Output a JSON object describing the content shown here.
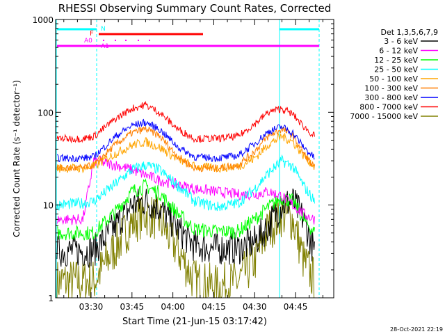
{
  "chart_data": {
    "type": "line",
    "title": "RHESSI Observing Summary Count Rates, Corrected",
    "xlabel": "Start Time (21-Jun-15 03:17:42)",
    "ylabel": "Corrected Count Rate (s⁻¹ detector⁻¹)",
    "yscale": "log",
    "ylim": [
      1,
      1000
    ],
    "y_ticks": [
      {
        "value": 1,
        "label": "1"
      },
      {
        "value": 10,
        "label": "10"
      },
      {
        "value": 100,
        "label": "100"
      },
      {
        "value": 1000,
        "label": "1000"
      }
    ],
    "xlim": [
      "03:17",
      "04:59"
    ],
    "x_ticks": [
      "03:30",
      "03:45",
      "04:00",
      "04:15",
      "04:30",
      "04:45"
    ],
    "grid": false,
    "legend_position": "right",
    "legend_title": "Det 1,3,5,6,7,9",
    "x": [
      "03:18",
      "03:27",
      "03:31",
      "03:39",
      "03:45",
      "03:50",
      "03:55",
      "04:02",
      "04:08",
      "04:16",
      "04:24",
      "04:30",
      "04:35",
      "04:40",
      "04:44",
      "04:48",
      "04:52"
    ],
    "series": [
      {
        "name": "3 - 6 keV",
        "color": "#000000",
        "values": [
          3.2,
          3.2,
          3.2,
          6.0,
          10.0,
          11.0,
          9.5,
          5.5,
          3.6,
          3.4,
          3.4,
          4.0,
          6.0,
          10.0,
          11.0,
          7.0,
          3.0
        ]
      },
      {
        "name": "6 - 12 keV",
        "color": "#ff00ff",
        "values": [
          7.0,
          7.0,
          30.0,
          27.0,
          24.0,
          21.0,
          18.5,
          16.5,
          15.0,
          14.0,
          13.0,
          13.0,
          14.0,
          12.5,
          10.0,
          8.0,
          7.0
        ]
      },
      {
        "name": "12 - 25 keV",
        "color": "#00ff00",
        "values": [
          5.0,
          5.0,
          5.0,
          8.5,
          14.0,
          16.0,
          13.5,
          8.0,
          5.5,
          5.2,
          5.2,
          7.0,
          9.5,
          12.0,
          11.0,
          7.0,
          5.0
        ]
      },
      {
        "name": "25 - 50 keV",
        "color": "#00ffff",
        "values": [
          10.0,
          10.5,
          11.0,
          17.0,
          24.0,
          27.0,
          24.0,
          16.0,
          11.0,
          9.5,
          10.5,
          15.0,
          22.0,
          30.0,
          26.0,
          16.0,
          11.0
        ]
      },
      {
        "name": "50 - 100 keV",
        "color": "#ffa500",
        "values": [
          25.0,
          25.0,
          26.0,
          36.0,
          44.0,
          48.0,
          42.0,
          31.0,
          26.0,
          25.0,
          26.0,
          32.0,
          45.0,
          55.0,
          48.0,
          34.0,
          26.0
        ]
      },
      {
        "name": "100 - 300 keV",
        "color": "#ff7f00",
        "values": [
          25.0,
          25.0,
          27.0,
          45.0,
          60.0,
          66.0,
          56.0,
          33.0,
          25.0,
          25.0,
          27.0,
          38.0,
          55.0,
          66.0,
          56.0,
          36.0,
          25.0
        ]
      },
      {
        "name": "300 - 800 keV",
        "color": "#0000ff",
        "values": [
          32.0,
          32.0,
          33.0,
          55.0,
          72.0,
          78.0,
          66.0,
          42.0,
          33.0,
          32.0,
          34.0,
          46.0,
          62.0,
          70.0,
          60.0,
          42.0,
          32.0
        ]
      },
      {
        "name": "800 - 7000 keV",
        "color": "#ff0000",
        "values": [
          52.0,
          52.0,
          55.0,
          85.0,
          110.0,
          120.0,
          100.0,
          65.0,
          52.0,
          52.0,
          55.0,
          75.0,
          100.0,
          110.0,
          95.0,
          70.0,
          55.0
        ]
      },
      {
        "name": "7000 - 15000 keV",
        "color": "#808000",
        "values": [
          1.5,
          1.5,
          1.5,
          3.5,
          6.5,
          8.0,
          7.0,
          3.2,
          1.5,
          1.3,
          1.5,
          2.5,
          5.5,
          8.0,
          7.0,
          2.5,
          1.5
        ]
      }
    ],
    "annotations": [
      {
        "text": "N",
        "color": "#00ffff"
      },
      {
        "text": "F",
        "color": "#ff0000"
      },
      {
        "text": "A0",
        "color": "#ff00ff"
      },
      {
        "text": "A1",
        "color": "#ff00ff"
      }
    ]
  },
  "footer": {
    "timestamp": "28-Oct-2021 22:19"
  }
}
